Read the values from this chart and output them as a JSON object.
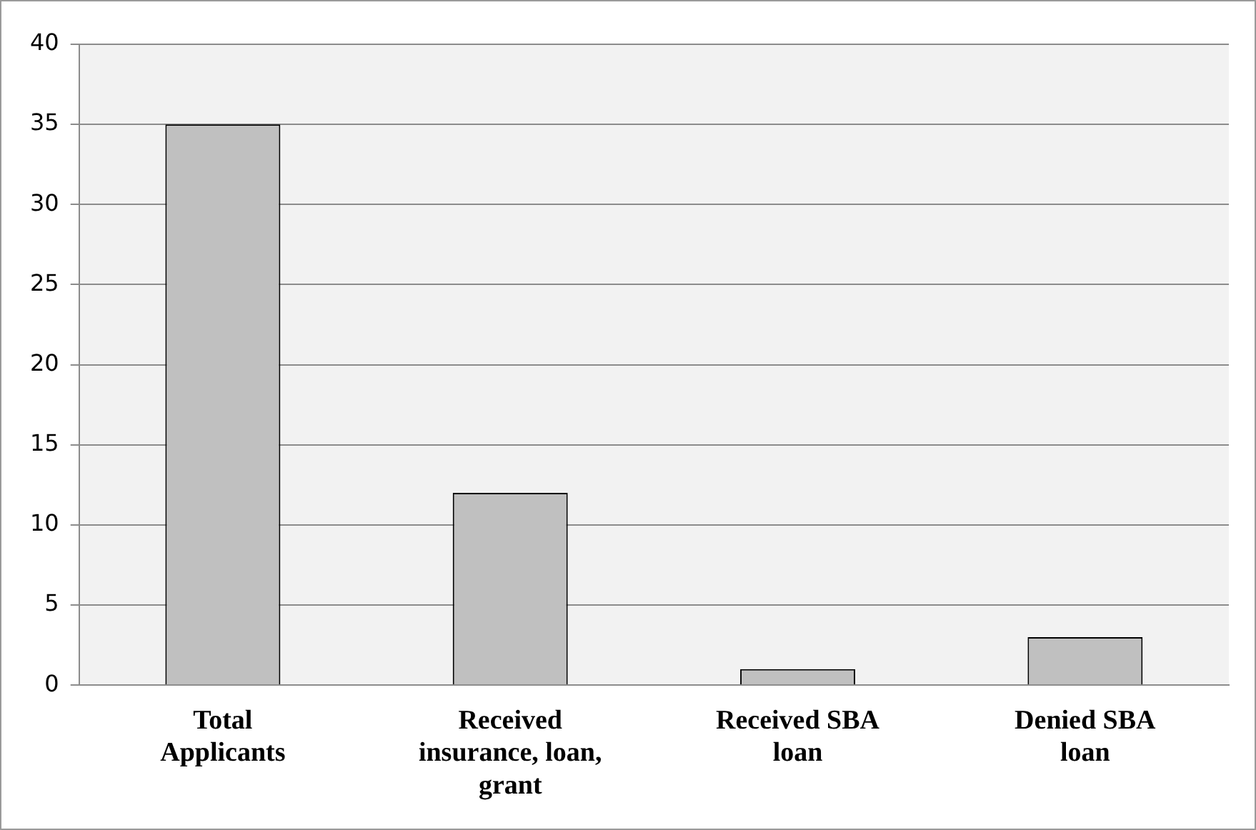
{
  "chart_data": {
    "type": "bar",
    "categories": [
      "Total Applicants",
      "Received insurance, loan, grant",
      "Received SBA loan",
      "Denied SBA loan"
    ],
    "values": [
      35,
      12,
      1,
      3
    ],
    "color": "#c0c0c0",
    "ylim": [
      0,
      40
    ],
    "yticks": [
      0,
      5,
      10,
      15,
      20,
      25,
      30,
      35,
      40
    ],
    "grid": "y",
    "legend": false
  }
}
